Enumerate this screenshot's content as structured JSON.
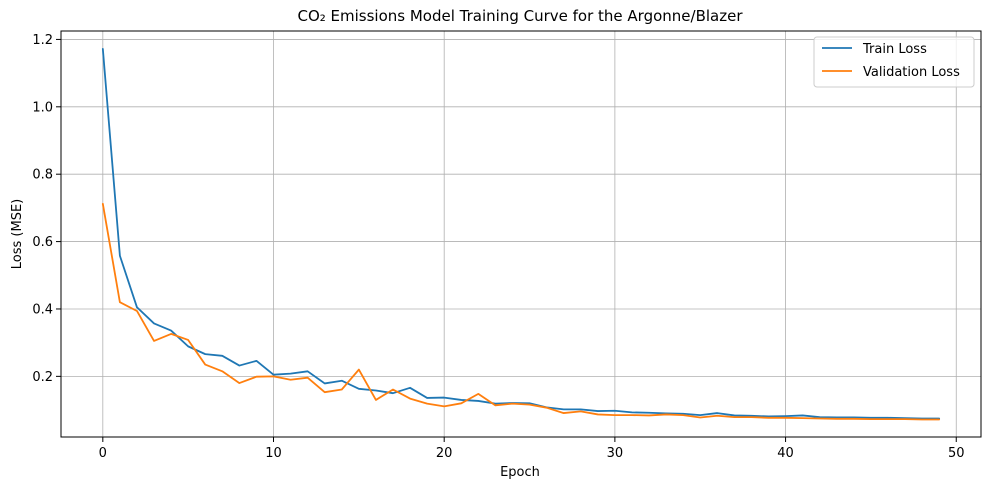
{
  "chart_data": {
    "type": "line",
    "title": "CO₂ Emissions Model Training Curve for the Argonne/Blazer",
    "xlabel": "Epoch",
    "ylabel": "Loss (MSE)",
    "xlim": [
      -2.45,
      51.45
    ],
    "ylim": [
      0.02,
      1.225
    ],
    "xticks": [
      0,
      10,
      20,
      30,
      40,
      50
    ],
    "yticks": [
      0.2,
      0.4,
      0.6,
      0.8,
      1.0,
      1.2
    ],
    "xtick_labels": [
      "0",
      "10",
      "20",
      "30",
      "40",
      "50"
    ],
    "ytick_labels": [
      "0.2",
      "0.4",
      "0.6",
      "0.8",
      "1.0",
      "1.2"
    ],
    "grid": true,
    "legend_position": "top-right",
    "x": [
      0,
      1,
      2,
      3,
      4,
      5,
      6,
      7,
      8,
      9,
      10,
      11,
      12,
      13,
      14,
      15,
      16,
      17,
      18,
      19,
      20,
      21,
      22,
      23,
      24,
      25,
      26,
      27,
      28,
      29,
      30,
      31,
      32,
      33,
      34,
      35,
      36,
      37,
      38,
      39,
      40,
      41,
      42,
      43,
      44,
      45,
      46,
      47,
      48,
      49
    ],
    "series": [
      {
        "name": "Train Loss",
        "color": "#1f77b4",
        "values": [
          1.172,
          0.558,
          0.405,
          0.357,
          0.336,
          0.289,
          0.266,
          0.261,
          0.232,
          0.246,
          0.205,
          0.208,
          0.215,
          0.179,
          0.187,
          0.163,
          0.158,
          0.15,
          0.166,
          0.136,
          0.137,
          0.13,
          0.127,
          0.119,
          0.121,
          0.12,
          0.108,
          0.102,
          0.102,
          0.097,
          0.098,
          0.093,
          0.092,
          0.09,
          0.089,
          0.085,
          0.091,
          0.084,
          0.083,
          0.081,
          0.082,
          0.084,
          0.079,
          0.078,
          0.078,
          0.077,
          0.077,
          0.076,
          0.075,
          0.075
        ]
      },
      {
        "name": "Validation Loss",
        "color": "#ff7f0e",
        "values": [
          0.712,
          0.42,
          0.394,
          0.305,
          0.326,
          0.308,
          0.235,
          0.215,
          0.18,
          0.199,
          0.2,
          0.19,
          0.196,
          0.153,
          0.161,
          0.22,
          0.13,
          0.161,
          0.134,
          0.119,
          0.111,
          0.12,
          0.148,
          0.114,
          0.119,
          0.116,
          0.107,
          0.091,
          0.096,
          0.087,
          0.085,
          0.085,
          0.084,
          0.087,
          0.085,
          0.078,
          0.083,
          0.079,
          0.079,
          0.077,
          0.077,
          0.076,
          0.075,
          0.074,
          0.074,
          0.073,
          0.073,
          0.073,
          0.072,
          0.072
        ]
      }
    ]
  }
}
